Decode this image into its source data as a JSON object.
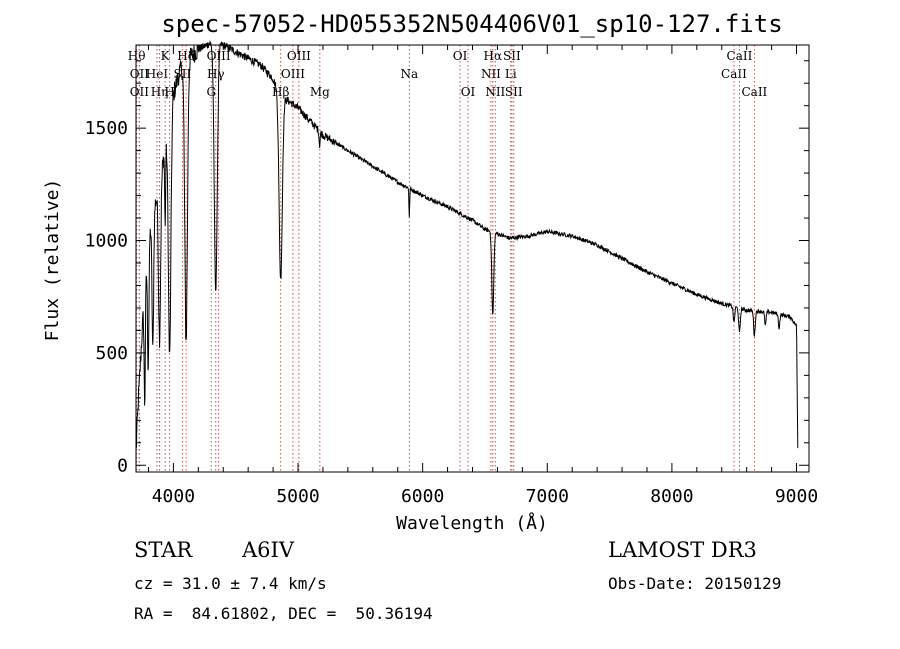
{
  "chart_data": {
    "type": "line",
    "title": "spec-57052-HD055352N504406V01_sp10-127.fits",
    "xlabel": "Wavelength (Å)",
    "ylabel": "Flux (relative)",
    "xlim": [
      3700,
      9100
    ],
    "ylim": [
      -30,
      1870
    ],
    "x_ticks": [
      4000,
      5000,
      6000,
      7000,
      8000,
      9000
    ],
    "y_ticks": [
      0,
      500,
      1000,
      1500
    ],
    "continuum": [
      [
        3700,
        60
      ],
      [
        3720,
        300
      ],
      [
        3760,
        700
      ],
      [
        3800,
        1000
      ],
      [
        3850,
        1150
      ],
      [
        3900,
        1300
      ],
      [
        3950,
        1450
      ],
      [
        4000,
        1650
      ],
      [
        4050,
        1750
      ],
      [
        4100,
        1800
      ],
      [
        4200,
        1850
      ],
      [
        4300,
        1880
      ],
      [
        4400,
        1870
      ],
      [
        4500,
        1840
      ],
      [
        4600,
        1810
      ],
      [
        4700,
        1780
      ],
      [
        4800,
        1720
      ],
      [
        4850,
        1650
      ],
      [
        4900,
        1630
      ],
      [
        5000,
        1590
      ],
      [
        5100,
        1530
      ],
      [
        5200,
        1470
      ],
      [
        5400,
        1400
      ],
      [
        5600,
        1330
      ],
      [
        5800,
        1260
      ],
      [
        6000,
        1200
      ],
      [
        6200,
        1150
      ],
      [
        6400,
        1090
      ],
      [
        6500,
        1050
      ],
      [
        6700,
        1010
      ],
      [
        6850,
        1020
      ],
      [
        7000,
        1040
      ],
      [
        7200,
        1020
      ],
      [
        7400,
        980
      ],
      [
        7600,
        920
      ],
      [
        7800,
        860
      ],
      [
        8000,
        810
      ],
      [
        8200,
        760
      ],
      [
        8400,
        720
      ],
      [
        8600,
        690
      ],
      [
        8800,
        680
      ],
      [
        8950,
        660
      ],
      [
        9000,
        620
      ],
      [
        9010,
        80
      ]
    ],
    "absorption_lines": [
      {
        "wave": 3770,
        "depth": 500,
        "width": 7
      },
      {
        "wave": 3798,
        "depth": 550,
        "width": 8
      },
      {
        "wave": 3835,
        "depth": 600,
        "width": 9
      },
      {
        "wave": 3889,
        "depth": 700,
        "width": 12
      },
      {
        "wave": 3934,
        "depth": 350,
        "width": 5
      },
      {
        "wave": 3970,
        "depth": 1050,
        "width": 14
      },
      {
        "wave": 4102,
        "depth": 1250,
        "width": 15
      },
      {
        "wave": 4340,
        "depth": 1100,
        "width": 17
      },
      {
        "wave": 4861,
        "depth": 820,
        "width": 18
      },
      {
        "wave": 5173,
        "depth": 60,
        "width": 6
      },
      {
        "wave": 5893,
        "depth": 130,
        "width": 4
      },
      {
        "wave": 6563,
        "depth": 370,
        "width": 11
      },
      {
        "wave": 8498,
        "depth": 70,
        "width": 8
      },
      {
        "wave": 8542,
        "depth": 110,
        "width": 9
      },
      {
        "wave": 8662,
        "depth": 110,
        "width": 9
      },
      {
        "wave": 8750,
        "depth": 60,
        "width": 8
      },
      {
        "wave": 8860,
        "depth": 60,
        "width": 8
      }
    ],
    "line_markers": [
      {
        "wave": 3705,
        "row": 0,
        "label": "Hθ"
      },
      {
        "wave": 3727,
        "row": 1,
        "label": "OII"
      },
      {
        "wave": 3727,
        "row": 2,
        "label": "OII"
      },
      {
        "wave": 3868,
        "row": 1,
        "label": "HeI"
      },
      {
        "wave": 3889,
        "row": 2,
        "label": "Hη"
      },
      {
        "wave": 3934,
        "row": 0,
        "label": "K"
      },
      {
        "wave": 3970,
        "row": 2,
        "label": "H"
      },
      {
        "wave": 4072,
        "row": 1,
        "label": "SII"
      },
      {
        "wave": 4102,
        "row": 0,
        "label": "Hδ"
      },
      {
        "wave": 4304,
        "row": 2,
        "label": "G"
      },
      {
        "wave": 4340,
        "row": 1,
        "label": "Hγ"
      },
      {
        "wave": 4363,
        "row": 0,
        "label": "OIII"
      },
      {
        "wave": 4861,
        "row": 2,
        "label": "Hβ"
      },
      {
        "wave": 4959,
        "row": 1,
        "label": "OIII"
      },
      {
        "wave": 5007,
        "row": 0,
        "label": "OIII"
      },
      {
        "wave": 5175,
        "row": 2,
        "label": "Mg"
      },
      {
        "wave": 5893,
        "row": 1,
        "label": "Na"
      },
      {
        "wave": 6300,
        "row": 0,
        "label": "OI"
      },
      {
        "wave": 6364,
        "row": 2,
        "label": "OI"
      },
      {
        "wave": 6548,
        "row": 1,
        "label": "NII"
      },
      {
        "wave": 6563,
        "row": 0,
        "label": "Hα"
      },
      {
        "wave": 6583,
        "row": 2,
        "label": "NII"
      },
      {
        "wave": 6707,
        "row": 1,
        "label": "Li"
      },
      {
        "wave": 6716,
        "row": 0,
        "label": "SII"
      },
      {
        "wave": 6731,
        "row": 2,
        "label": "SII"
      },
      {
        "wave": 8498,
        "row": 1,
        "label": "CaII"
      },
      {
        "wave": 8542,
        "row": 0,
        "label": "CaII"
      },
      {
        "wave": 8662,
        "row": 2,
        "label": "CaII"
      }
    ]
  },
  "info": {
    "object_type": "STAR",
    "subclass": "A6IV",
    "redshift_line": "cz = 31.0 ± 7.4 km/s",
    "coords_line": "RA =  84.61802, DEC =  50.36194",
    "survey": "LAMOST DR3",
    "obs_date_line": "Obs-Date: 20150129"
  }
}
